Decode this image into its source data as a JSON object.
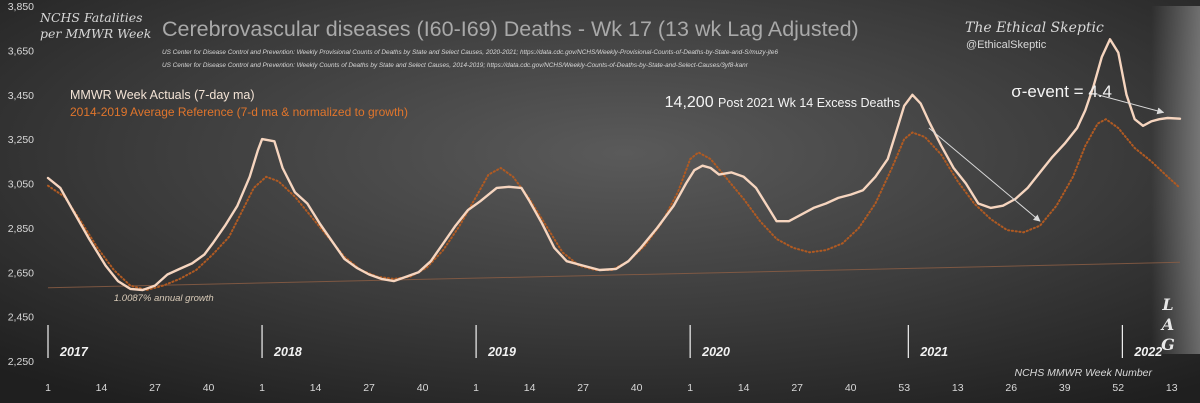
{
  "header": {
    "corner_label_line1": "NCHS Fatalities",
    "corner_label_line2": "per MMWR Week",
    "title": "Cerebrovascular diseases (I60-I69) Deaths - Wk 17 (13 wk Lag Adjusted)",
    "source_line1": "US Center for Disease Control and Prevention: Weekly  Provisional Counts of Deaths by State and Select Causes, 2020-2021; https://data.cdc.gov/NCHS/Weekly-Provisional-Counts-of-Deaths-by-State-and-S/muzy-jte6",
    "source_line2": "US Center for Disease Control and Prevention: Weekly  Counts of Deaths by State and Select Causes, 2014-2019; https://data.cdc.gov/NCHS/Weekly-Counts-of-Deaths-by-State-and-Select-Causes/3yf8-kanr",
    "brand_name": "The Ethical Skeptic",
    "brand_handle": "@EthicalSkeptic"
  },
  "colors": {
    "background": "#2b2b2b",
    "actual_line": "#f6d5bf",
    "reference_line": "#b05a22",
    "legend_actual": "#f3e3d5",
    "legend_reference": "#e0752c",
    "growth_line": "#8a5d44",
    "text_light": "#d8d8d8",
    "title": "#a9a9a9"
  },
  "chart_data": {
    "type": "line",
    "xlabel": "NCHS MMWR Week Number",
    "ylim": [
      2250,
      3850
    ],
    "yticks": [
      2250,
      2450,
      2650,
      2850,
      3050,
      3250,
      3450,
      3650,
      3850
    ],
    "ytick_labels": [
      "2,250",
      "2,450",
      "2,650",
      "2,850",
      "3,050",
      "3,250",
      "3,450",
      "3,650",
      "3,850"
    ],
    "x_index_range": [
      0,
      275
    ],
    "x_tick_positions": [
      0,
      13,
      26,
      39,
      52,
      65,
      78,
      91,
      104,
      117,
      130,
      143,
      156,
      169,
      182,
      195,
      208,
      221,
      234,
      247,
      260,
      273
    ],
    "x_tick_labels": [
      "1",
      "14",
      "27",
      "40",
      "1",
      "14",
      "27",
      "40",
      "1",
      "14",
      "27",
      "40",
      "1",
      "14",
      "27",
      "40",
      "53",
      "13",
      "26",
      "39",
      "52",
      "13"
    ],
    "year_labels": [
      {
        "label": "2017",
        "x": 0
      },
      {
        "label": "2018",
        "x": 52
      },
      {
        "label": "2019",
        "x": 104
      },
      {
        "label": "2020",
        "x": 156
      },
      {
        "label": "2021",
        "x": 209
      },
      {
        "label": "2022",
        "x": 261
      }
    ],
    "series": [
      {
        "name": "MMWR Week Actuals (7-day ma)",
        "style": "solid",
        "points": [
          [
            0,
            3075
          ],
          [
            3,
            3030
          ],
          [
            6,
            2930
          ],
          [
            10,
            2800
          ],
          [
            14,
            2680
          ],
          [
            17,
            2610
          ],
          [
            20,
            2575
          ],
          [
            23,
            2570
          ],
          [
            26,
            2590
          ],
          [
            29,
            2640
          ],
          [
            32,
            2665
          ],
          [
            35,
            2690
          ],
          [
            38,
            2730
          ],
          [
            40,
            2780
          ],
          [
            43,
            2860
          ],
          [
            46,
            2950
          ],
          [
            49,
            3080
          ],
          [
            51,
            3200
          ],
          [
            52,
            3250
          ],
          [
            55,
            3240
          ],
          [
            57,
            3120
          ],
          [
            60,
            3010
          ],
          [
            63,
            2960
          ],
          [
            66,
            2870
          ],
          [
            69,
            2790
          ],
          [
            72,
            2710
          ],
          [
            75,
            2670
          ],
          [
            78,
            2640
          ],
          [
            81,
            2620
          ],
          [
            84,
            2610
          ],
          [
            87,
            2630
          ],
          [
            90,
            2650
          ],
          [
            93,
            2700
          ],
          [
            96,
            2780
          ],
          [
            99,
            2860
          ],
          [
            102,
            2930
          ],
          [
            105,
            2970
          ],
          [
            107,
            3000
          ],
          [
            109,
            3030
          ],
          [
            112,
            3035
          ],
          [
            115,
            3030
          ],
          [
            117,
            2970
          ],
          [
            120,
            2870
          ],
          [
            123,
            2760
          ],
          [
            126,
            2700
          ],
          [
            130,
            2680
          ],
          [
            134,
            2660
          ],
          [
            138,
            2665
          ],
          [
            141,
            2700
          ],
          [
            144,
            2760
          ],
          [
            148,
            2850
          ],
          [
            152,
            2950
          ],
          [
            155,
            3050
          ],
          [
            157,
            3110
          ],
          [
            159,
            3130
          ],
          [
            161,
            3120
          ],
          [
            163,
            3090
          ],
          [
            166,
            3100
          ],
          [
            169,
            3080
          ],
          [
            172,
            3030
          ],
          [
            175,
            2940
          ],
          [
            177,
            2880
          ],
          [
            180,
            2880
          ],
          [
            183,
            2910
          ],
          [
            186,
            2940
          ],
          [
            189,
            2960
          ],
          [
            192,
            2985
          ],
          [
            195,
            3000
          ],
          [
            198,
            3020
          ],
          [
            201,
            3080
          ],
          [
            204,
            3160
          ],
          [
            206,
            3280
          ],
          [
            208,
            3400
          ],
          [
            210,
            3450
          ],
          [
            212,
            3410
          ],
          [
            214,
            3330
          ],
          [
            217,
            3220
          ],
          [
            220,
            3120
          ],
          [
            223,
            3050
          ],
          [
            226,
            2960
          ],
          [
            229,
            2940
          ],
          [
            232,
            2950
          ],
          [
            235,
            2980
          ],
          [
            238,
            3030
          ],
          [
            241,
            3100
          ],
          [
            244,
            3170
          ],
          [
            247,
            3230
          ],
          [
            250,
            3300
          ],
          [
            252,
            3380
          ],
          [
            254,
            3490
          ],
          [
            256,
            3620
          ],
          [
            258,
            3700
          ],
          [
            260,
            3640
          ],
          [
            262,
            3450
          ],
          [
            264,
            3340
          ],
          [
            266,
            3310
          ],
          [
            268,
            3330
          ],
          [
            270,
            3340
          ],
          [
            272,
            3345
          ],
          [
            275,
            3342
          ]
        ]
      },
      {
        "name": "2014-2019  Average Reference (7-d ma & normalized to growth)",
        "style": "dotted",
        "points": [
          [
            0,
            3040
          ],
          [
            4,
            2990
          ],
          [
            8,
            2880
          ],
          [
            12,
            2760
          ],
          [
            16,
            2660
          ],
          [
            20,
            2590
          ],
          [
            24,
            2570
          ],
          [
            28,
            2590
          ],
          [
            32,
            2620
          ],
          [
            36,
            2660
          ],
          [
            40,
            2730
          ],
          [
            44,
            2810
          ],
          [
            47,
            2920
          ],
          [
            50,
            3030
          ],
          [
            53,
            3080
          ],
          [
            56,
            3060
          ],
          [
            60,
            2990
          ],
          [
            64,
            2900
          ],
          [
            68,
            2810
          ],
          [
            72,
            2720
          ],
          [
            76,
            2660
          ],
          [
            80,
            2630
          ],
          [
            84,
            2620
          ],
          [
            88,
            2630
          ],
          [
            92,
            2670
          ],
          [
            96,
            2750
          ],
          [
            100,
            2860
          ],
          [
            104,
            2990
          ],
          [
            107,
            3090
          ],
          [
            110,
            3120
          ],
          [
            113,
            3080
          ],
          [
            117,
            2980
          ],
          [
            121,
            2860
          ],
          [
            125,
            2740
          ],
          [
            129,
            2680
          ],
          [
            133,
            2660
          ],
          [
            137,
            2660
          ],
          [
            141,
            2700
          ],
          [
            145,
            2770
          ],
          [
            149,
            2870
          ],
          [
            153,
            3010
          ],
          [
            156,
            3160
          ],
          [
            158,
            3190
          ],
          [
            161,
            3160
          ],
          [
            165,
            3070
          ],
          [
            169,
            2980
          ],
          [
            173,
            2880
          ],
          [
            177,
            2800
          ],
          [
            181,
            2760
          ],
          [
            185,
            2740
          ],
          [
            189,
            2750
          ],
          [
            193,
            2780
          ],
          [
            197,
            2850
          ],
          [
            201,
            2960
          ],
          [
            205,
            3120
          ],
          [
            208,
            3250
          ],
          [
            210,
            3280
          ],
          [
            213,
            3260
          ],
          [
            217,
            3180
          ],
          [
            221,
            3060
          ],
          [
            225,
            2960
          ],
          [
            229,
            2890
          ],
          [
            233,
            2840
          ],
          [
            237,
            2830
          ],
          [
            241,
            2860
          ],
          [
            245,
            2950
          ],
          [
            249,
            3080
          ],
          [
            252,
            3220
          ],
          [
            255,
            3320
          ],
          [
            257,
            3340
          ],
          [
            260,
            3300
          ],
          [
            264,
            3210
          ],
          [
            268,
            3150
          ],
          [
            272,
            3080
          ],
          [
            275,
            3030
          ]
        ]
      },
      {
        "name": "1.0087% annual growth",
        "style": "thin",
        "points": [
          [
            0,
            2580
          ],
          [
            275,
            2695
          ]
        ]
      }
    ],
    "annotations": [
      {
        "id": "excess",
        "text_number": "14,200",
        "text_label": "Post 2021 Wk 14 Excess Deaths",
        "text_anchor": [
          207,
          3395
        ],
        "arrow": [
          [
            214,
            3300
          ],
          [
            241,
            2880
          ]
        ]
      },
      {
        "id": "sigma",
        "text": "σ-event = 4.4",
        "text_anchor": [
          234,
          3440
        ],
        "arrow": [
          [
            255,
            3450
          ],
          [
            271,
            3370
          ]
        ]
      },
      {
        "id": "growth",
        "text": "1.0087% annual growth",
        "text_anchor": [
          16,
          2520
        ]
      }
    ],
    "lag_label": [
      "L",
      "A",
      "G"
    ],
    "lag_start_x": 268
  }
}
